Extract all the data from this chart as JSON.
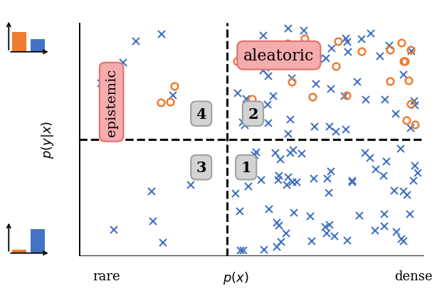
{
  "title": "",
  "xlabel_left": "rare",
  "xlabel_center": "$p(x)$",
  "xlabel_right": "dense",
  "ylabel": "$p(y|x)$",
  "label_aleatoric": "aleatoric",
  "label_epistemic": "epistemic",
  "quadrant_labels": [
    "1",
    "2",
    "3",
    "4"
  ],
  "blue_cross_color": "#4472C4",
  "orange_circle_color": "#ED7D31",
  "background_color": "#FFFFFF",
  "seed": 42,
  "vline": 0.43,
  "hline": 0.5,
  "figsize": [
    6.14,
    4.1
  ],
  "dpi": 100,
  "blue_crosses": {
    "dense_high_n": 50,
    "dense_low_n": 60,
    "rare_high_n": 5,
    "rare_low_n": 5
  },
  "orange_circles": {
    "dense_high_n": 22,
    "rare_high_n": 4
  }
}
